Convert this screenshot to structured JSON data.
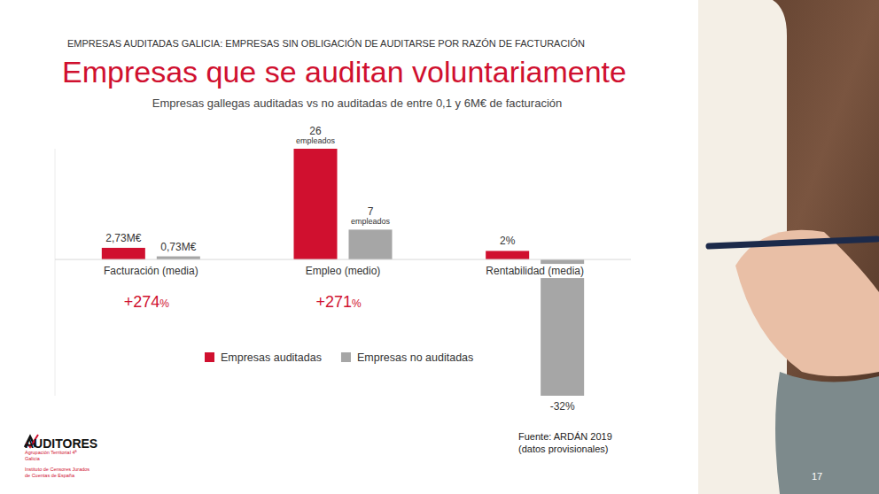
{
  "chart_data": {
    "type": "bar",
    "title": "Empresas que se auditan voluntariamente",
    "subtitle": "Empresas gallegas auditadas vs no auditadas de entre 0,1 y 6M€ de facturación",
    "categories": [
      "Facturación (media)",
      "Empleo (medio)",
      "Rentabilidad (media)"
    ],
    "series": [
      {
        "name": "Empresas auditadas",
        "color": "#d0102f",
        "values": [
          2.73,
          26,
          2
        ],
        "value_labels": [
          "2,73M€",
          "26 empleados",
          "2%"
        ]
      },
      {
        "name": "Empresas no auditadas",
        "color": "#a6a6a6",
        "values": [
          0.73,
          7,
          -32
        ],
        "value_labels": [
          "0,73M€",
          "7 empleados",
          "-32%"
        ]
      }
    ],
    "annotations": [
      {
        "text": "+274%",
        "category": "Facturación (media)"
      },
      {
        "text": "+271%",
        "category": "Empleo (medio)"
      }
    ],
    "ylim": [
      -32,
      26
    ],
    "yticks": [
      0
    ],
    "tick_labels": false,
    "data_labels": true,
    "grid": false,
    "legend": "bottom"
  },
  "slide": {
    "header": "EMPRESAS AUDITADAS GALICIA: EMPRESAS SIN OBLIGACIÓN DE AUDITARSE POR RAZÓN DE FACTURACIÓN",
    "source": [
      "Fuente: ARDÁN 2019",
      "(datos provisionales)"
    ],
    "logo": {
      "name": "AUDITORES",
      "lines": [
        "Agrupación Territorial 4ª",
        "Galicia",
        "Instituto de Censores Jurados",
        "de Cuentas de España"
      ]
    },
    "page_number": "17"
  }
}
